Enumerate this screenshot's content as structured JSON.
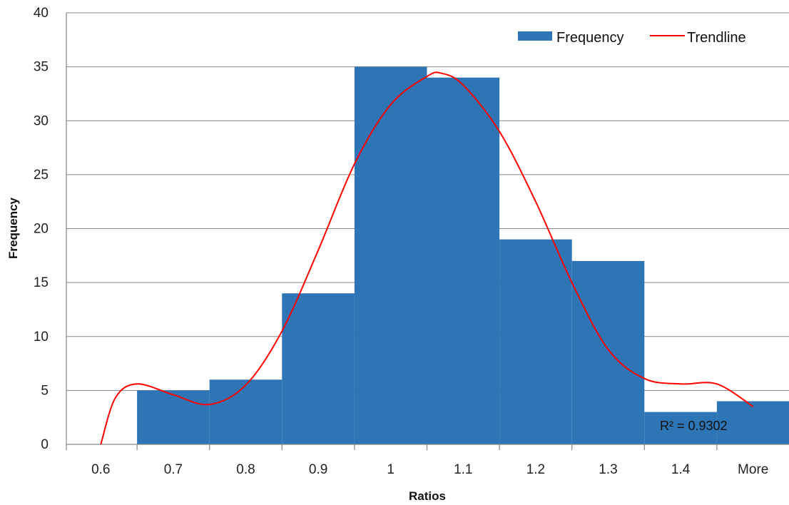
{
  "chart_data": {
    "type": "bar",
    "xlabel": "Ratios",
    "ylabel": "Frequency",
    "ylim": [
      0,
      40
    ],
    "yticks": [
      "0",
      "5",
      "10",
      "15",
      "20",
      "25",
      "30",
      "35",
      "40"
    ],
    "categories": [
      "0.6",
      "0.7",
      "0.8",
      "0.9",
      "1",
      "1.1",
      "1.2",
      "1.3",
      "1.4",
      "More"
    ],
    "series": [
      {
        "name": "Frequency",
        "type": "bar",
        "color": "#2E75B6",
        "values": [
          0,
          5,
          6,
          14,
          35,
          34,
          19,
          17,
          3,
          4
        ]
      },
      {
        "name": "Trendline",
        "type": "line",
        "color": "#FF0000",
        "x": [
          0.6,
          0.62,
          0.65,
          0.7,
          0.75,
          0.8,
          0.85,
          0.9,
          0.95,
          1.0,
          1.05,
          1.07,
          1.1,
          1.15,
          1.2,
          1.25,
          1.3,
          1.35,
          1.4,
          1.45,
          1.5
        ],
        "values": [
          0,
          4.3,
          5.6,
          4.6,
          3.7,
          5.5,
          10.5,
          18,
          26,
          31.5,
          34.1,
          34.4,
          33.3,
          29,
          22.5,
          15,
          8.8,
          6.1,
          5.6,
          5.6,
          3.5
        ]
      }
    ],
    "annotation": "R² = 0.9302",
    "legend": "top-right",
    "grid": true
  }
}
